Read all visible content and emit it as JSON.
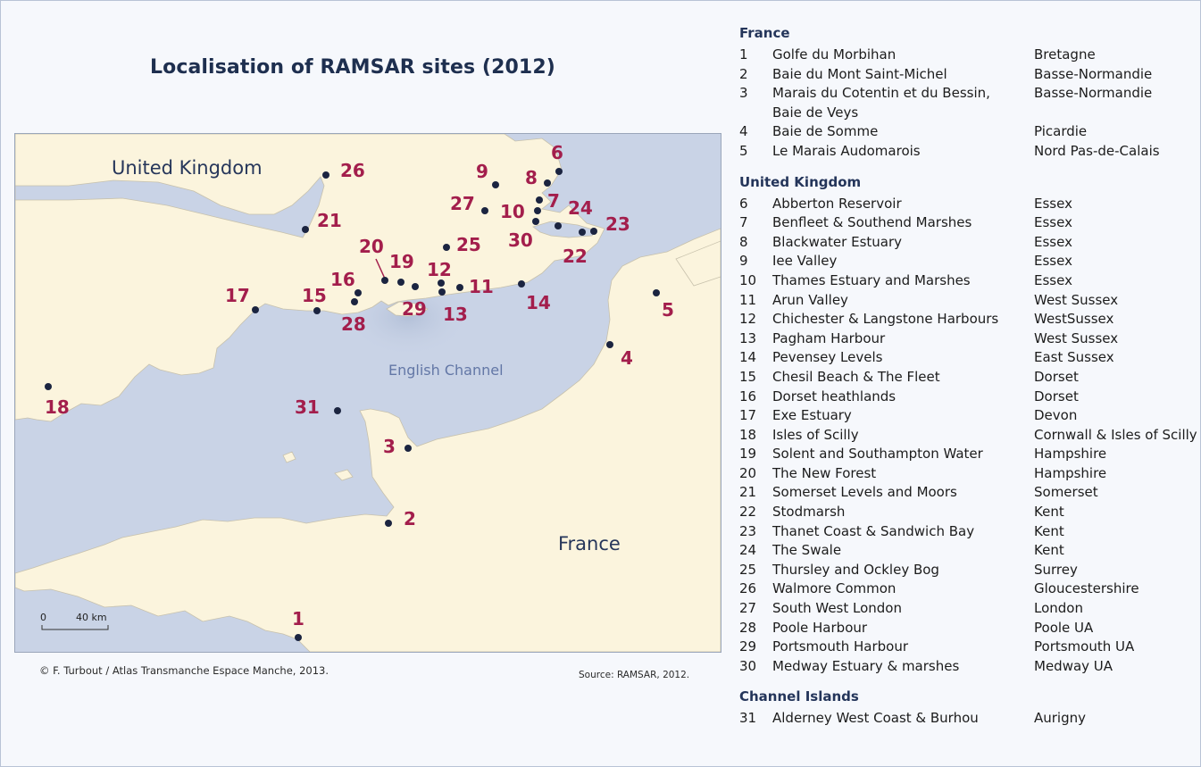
{
  "title": "Localisation of RAMSAR sites (2012)",
  "credit": "© F. Turbout / Atlas Transmanche Espace Manche, 2013.",
  "source": "Source: RAMSAR, 2012.",
  "map": {
    "country_uk": "United Kingdom",
    "country_fr": "France",
    "sea": "English Channel",
    "scale_zero": "0",
    "scale_value": "40 km",
    "colors": {
      "land": "#fbf4dd",
      "sea": "#c9d3e6",
      "dot": "#1b2440",
      "label": "#a31e4c"
    }
  },
  "markers": [
    "1",
    "2",
    "3",
    "4",
    "5",
    "6",
    "7",
    "8",
    "9",
    "10",
    "11",
    "12",
    "13",
    "14",
    "15",
    "16",
    "17",
    "18",
    "19",
    "20",
    "21",
    "22",
    "23",
    "24",
    "25",
    "26",
    "27",
    "28",
    "29",
    "30",
    "31"
  ],
  "legend": {
    "france_header": "France",
    "france": [
      {
        "n": "1",
        "name": "Golfe du Morbihan",
        "region": "Bretagne"
      },
      {
        "n": "2",
        "name": "Baie du Mont Saint-Michel",
        "region": "Basse-Normandie"
      },
      {
        "n": "3",
        "name": "Marais du Cotentin et du Bessin,\nBaie de Veys",
        "region": "Basse-Normandie"
      },
      {
        "n": "4",
        "name": "Baie de Somme",
        "region": "Picardie"
      },
      {
        "n": "5",
        "name": "Le Marais Audomarois",
        "region": "Nord Pas-de-Calais"
      }
    ],
    "uk_header": "United Kingdom",
    "uk": [
      {
        "n": "6",
        "name": "Abberton Reservoir",
        "region": "Essex"
      },
      {
        "n": "7",
        "name": "Benfleet & Southend Marshes",
        "region": "Essex"
      },
      {
        "n": "8",
        "name": "Blackwater Estuary",
        "region": "Essex"
      },
      {
        "n": "9",
        "name": "Iee Valley",
        "region": "Essex"
      },
      {
        "n": "10",
        "name": "Thames Estuary and Marshes",
        "region": "Essex"
      },
      {
        "n": "11",
        "name": "Arun Valley",
        "region": "West Sussex"
      },
      {
        "n": "12",
        "name": "Chichester & Langstone Harbours",
        "region": "WestSussex"
      },
      {
        "n": "13",
        "name": "Pagham Harbour",
        "region": "West Sussex"
      },
      {
        "n": "14",
        "name": "Pevensey Levels",
        "region": "East Sussex"
      },
      {
        "n": "15",
        "name": "Chesil Beach & The Fleet",
        "region": "Dorset"
      },
      {
        "n": "16",
        "name": "Dorset heathlands",
        "region": "Dorset"
      },
      {
        "n": "17",
        "name": "Exe Estuary",
        "region": "Devon"
      },
      {
        "n": "18",
        "name": "Isles of Scilly",
        "region": "Cornwall & Isles of Scilly"
      },
      {
        "n": "19",
        "name": "Solent and Southampton Water",
        "region": "Hampshire"
      },
      {
        "n": "20",
        "name": "The New Forest",
        "region": "Hampshire"
      },
      {
        "n": "21",
        "name": "Somerset Levels and Moors",
        "region": "Somerset"
      },
      {
        "n": "22",
        "name": "Stodmarsh",
        "region": "Kent"
      },
      {
        "n": "23",
        "name": "Thanet Coast & Sandwich Bay",
        "region": "Kent"
      },
      {
        "n": "24",
        "name": "The Swale",
        "region": "Kent"
      },
      {
        "n": "25",
        "name": "Thursley and Ockley Bog",
        "region": "Surrey"
      },
      {
        "n": "26",
        "name": "Walmore Common",
        "region": "Gloucestershire"
      },
      {
        "n": "27",
        "name": "South West London",
        "region": "London"
      },
      {
        "n": "28",
        "name": " Poole Harbour",
        "region": "Poole UA"
      },
      {
        "n": "29",
        "name": " Portsmouth Harbour",
        "region": "Portsmouth UA"
      },
      {
        "n": "30",
        "name": " Medway Estuary & marshes",
        "region": "Medway UA"
      }
    ],
    "ci_header": "Channel Islands",
    "ci": [
      {
        "n": "31",
        "name": " Alderney West Coast  & Burhou",
        "region": "Aurigny"
      }
    ]
  }
}
